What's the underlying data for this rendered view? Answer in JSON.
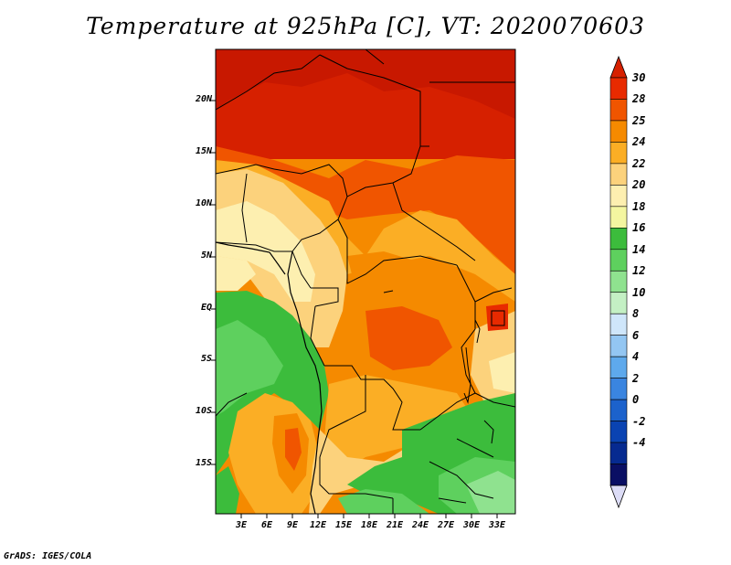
{
  "title": "Temperature at 925hPa [C], VT: 2020070603",
  "credit": "GrADS: IGES/COLA",
  "axes": {
    "lat_labels": [
      "20N",
      "15N",
      "10N",
      "5N",
      "EQ",
      "5S",
      "10S",
      "15S"
    ],
    "lon_labels": [
      "3E",
      "6E",
      "9E",
      "12E",
      "15E",
      "18E",
      "21E",
      "24E",
      "27E",
      "30E",
      "33E"
    ]
  },
  "colorbar": {
    "labels": [
      "30",
      "28",
      "25",
      "24",
      "22",
      "20",
      "18",
      "16",
      "14",
      "12",
      "10",
      "8",
      "6",
      "4",
      "2",
      "0",
      "-2",
      "-4"
    ],
    "colors": [
      "#e82a00",
      "#f05500",
      "#f58a00",
      "#fbae25",
      "#fcd27c",
      "#fdefb0",
      "#f4f6a0",
      "#3cbc3c",
      "#5ed05e",
      "#8fe28f",
      "#c4f0c4",
      "#cfe6fa",
      "#93c6f2",
      "#5ea9ec",
      "#3a85e0",
      "#1c62cc",
      "#0a43b2",
      "#062a90",
      "#0a0f64"
    ],
    "end_colors": {
      "top": "#d62000",
      "bottom": "#dcdcf6"
    }
  },
  "map": {
    "region": "Central Africa",
    "lon_range": [
      0,
      35
    ],
    "lat_range": [
      -20,
      23
    ]
  }
}
